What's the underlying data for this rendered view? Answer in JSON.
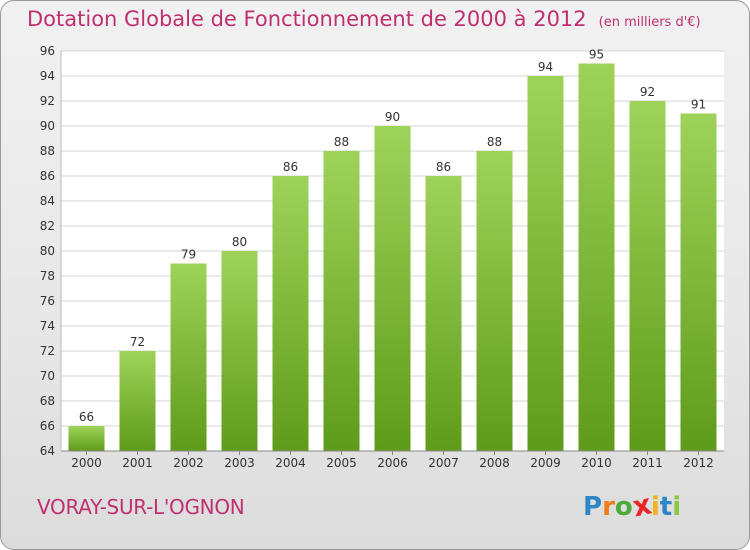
{
  "header": {
    "title": "Dotation Globale de Fonctionnement de 2000 à 2012",
    "unit": "(en milliers d'€)"
  },
  "footer": {
    "commune": "VORAY-SUR-L'OGNON",
    "logo_letters": [
      "P",
      "r",
      "o",
      "x",
      "i",
      "t",
      "i"
    ],
    "logo_colors": [
      "#2f86c6",
      "#ef7d1a",
      "#4daa3a",
      "#e8262a",
      "#f2b21b",
      "#2f86c6",
      "#8cc63f"
    ]
  },
  "colors": {
    "title": "#c03070",
    "bar_top": "#9ed35a",
    "bar_bottom": "#5f9b1a",
    "grid": "#d4d4d4",
    "axis_text": "#333333"
  },
  "chart_data": {
    "type": "bar",
    "categories": [
      "2000",
      "2001",
      "2002",
      "2003",
      "2004",
      "2005",
      "2006",
      "2007",
      "2008",
      "2009",
      "2010",
      "2011",
      "2012"
    ],
    "values": [
      66,
      72,
      79,
      80,
      86,
      88,
      90,
      86,
      88,
      94,
      95,
      92,
      91
    ],
    "ylim": [
      64,
      96
    ],
    "yticks": [
      64,
      66,
      68,
      70,
      72,
      74,
      76,
      78,
      80,
      82,
      84,
      86,
      88,
      90,
      92,
      94,
      96
    ],
    "grid": true,
    "data_labels": true
  }
}
